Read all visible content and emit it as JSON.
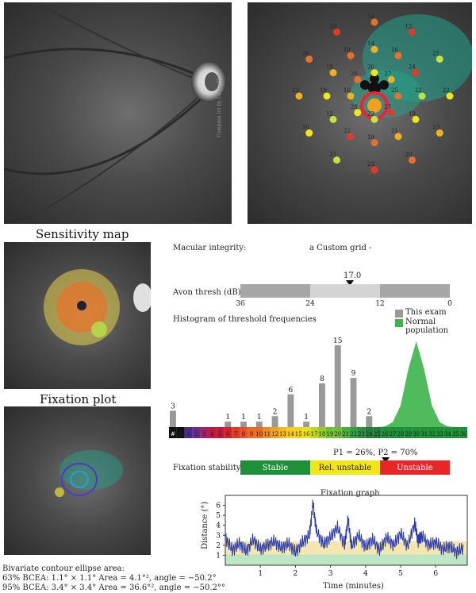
{
  "captions": {
    "sensitivity_map": "Sensitivity map",
    "fixation_plot": "Fixation plot"
  },
  "fundus_side_text": "Compass (c) by CenterVue",
  "macular": {
    "label": "Macular integrity:",
    "grid": "a Custom grid -"
  },
  "avon": {
    "label": "Avon thresh (dB)",
    "value_text": "17.0",
    "value": 17.0,
    "ticks": [
      "36",
      "24",
      "12",
      "0"
    ]
  },
  "histogram": {
    "title": "Histogram of threshold frequencies",
    "legend_this": "This exam",
    "legend_normal": "Normal population",
    "color_this": "#999999",
    "color_normal": "#3cb44b"
  },
  "chart_data": [
    {
      "type": "bar",
      "title": "Histogram of threshold frequencies",
      "categories": [
        "#",
        "0",
        "1",
        "2",
        "3",
        "4",
        "5",
        "6",
        "7",
        "8",
        "9",
        "10",
        "11",
        "12",
        "13",
        "14",
        "15",
        "16",
        "17",
        "18",
        "19",
        "20",
        "21",
        "22",
        "23",
        "24",
        "25",
        "26",
        "27",
        "28",
        "29",
        "30",
        "31",
        "32",
        "33",
        "34",
        "35",
        "36"
      ],
      "series": [
        {
          "name": "This exam",
          "values": [
            3,
            0,
            0,
            0,
            0,
            0,
            0,
            1,
            0,
            1,
            0,
            1,
            0,
            2,
            0,
            6,
            0,
            1,
            0,
            8,
            0,
            15,
            0,
            9,
            0,
            2,
            0,
            0,
            0,
            0,
            0,
            0,
            0,
            0,
            0,
            0,
            0,
            0
          ]
        },
        {
          "name": "Normal population",
          "values": [
            0,
            0,
            0,
            0,
            0,
            0,
            0,
            0,
            0,
            0,
            0,
            0,
            0,
            0,
            0,
            0,
            0,
            0,
            0,
            0,
            0,
            0,
            0,
            0,
            0,
            0,
            0,
            0.1,
            0.8,
            3.5,
            9.5,
            14,
            9.5,
            3.5,
            0.8,
            0.1,
            0,
            0
          ]
        }
      ],
      "data_labels": [
        "3",
        "1",
        "1",
        "1",
        "2",
        "6",
        "1",
        "8",
        "15",
        "9",
        "2"
      ]
    },
    {
      "type": "line",
      "title": "Fixation graph",
      "xlabel": "Time (minutes)",
      "ylabel": "Distance (°)",
      "xlim": [
        0,
        6.9
      ],
      "ylim": [
        0,
        7
      ],
      "x_ticks": [
        "1",
        "2",
        "3",
        "4",
        "5",
        "6"
      ],
      "y_ticks": [
        "1",
        "2",
        "3",
        "4",
        "5",
        "6"
      ],
      "x": [
        0,
        0.2,
        0.4,
        0.6,
        0.8,
        1.0,
        1.2,
        1.4,
        1.6,
        1.8,
        2.0,
        2.2,
        2.4,
        2.5,
        2.6,
        2.8,
        3.0,
        3.2,
        3.4,
        3.5,
        3.6,
        3.8,
        4.0,
        4.2,
        4.4,
        4.6,
        4.8,
        5.0,
        5.2,
        5.4,
        5.5,
        5.6,
        5.8,
        6.0,
        6.2,
        6.4,
        6.6,
        6.8
      ],
      "y": [
        2.8,
        1.5,
        2.2,
        1.4,
        2.6,
        1.6,
        2.0,
        2.4,
        1.7,
        2.2,
        1.3,
        2.3,
        3.0,
        6.2,
        3.4,
        2.1,
        2.8,
        3.8,
        2.0,
        4.6,
        1.9,
        3.0,
        1.8,
        2.6,
        1.5,
        2.8,
        2.0,
        3.2,
        1.9,
        4.2,
        2.4,
        3.0,
        2.0,
        2.3,
        1.6,
        1.9,
        1.3,
        1.8
      ]
    }
  ],
  "fixation": {
    "stats": "P1 = 26%, P2 = 70%",
    "label": "Fixation stability",
    "stable": "Stable",
    "rel_unstable": "Rel. unstable",
    "unstable": "Unstable",
    "stable_color": "#1f8f3a",
    "rel_color": "#f2e61a",
    "unstable_color": "#e8262a"
  },
  "fixation_graph": {
    "title": "Fixation graph",
    "xlabel": "Time (minutes)",
    "ylabel": "Distance (°)"
  },
  "bcea": {
    "title": "Bivariate contour ellipse area:",
    "line63": "63% BCEA: 1.1° × 1.1° Area = 4.1°², angle = −50.2°",
    "line95": "95% BCEA: 3.4° × 3.4° Area = 36.6°², angle = −50.2°°"
  },
  "grid_points": [
    "26",
    "27",
    "25",
    "27",
    "22",
    "28",
    "16",
    "26",
    "14",
    "16",
    "24",
    "22",
    "19",
    "21",
    "19",
    "22",
    "12",
    "19",
    "19",
    "19",
    "14",
    "12",
    "21",
    "22",
    "23",
    "20",
    "23",
    "21",
    "16",
    "22",
    "18",
    "20",
    "25"
  ]
}
